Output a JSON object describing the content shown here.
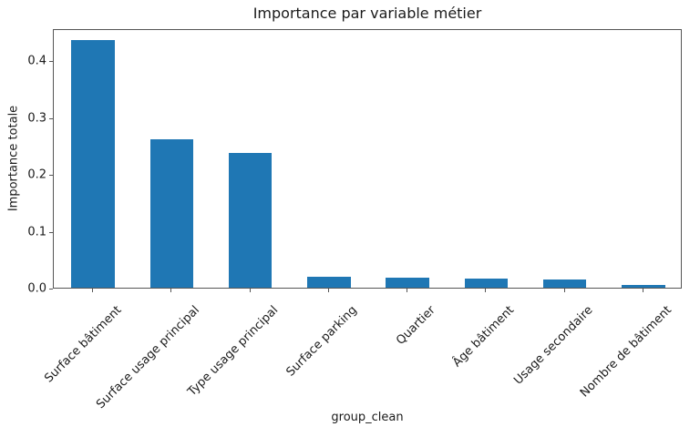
{
  "chart_data": {
    "type": "bar",
    "title": "Importance par variable métier",
    "xlabel": "group_clean",
    "ylabel": "Importance totale",
    "categories": [
      "Surface bâtiment",
      "Surface usage principal",
      "Type usage principal",
      "Surface parking",
      "Quartier",
      "Âge bâtiment",
      "Usage secondaire",
      "Nombre de bâtiment"
    ],
    "values": [
      0.435,
      0.261,
      0.237,
      0.019,
      0.018,
      0.016,
      0.015,
      0.005
    ],
    "yticks": [
      0.0,
      0.1,
      0.2,
      0.3,
      0.4
    ],
    "ytick_labels": [
      "0.0",
      "0.1",
      "0.2",
      "0.3",
      "0.4"
    ],
    "ylim": [
      0,
      0.456
    ],
    "bar_color": "#1f77b4",
    "x_tick_rotation_deg": 45,
    "grid": false,
    "legend": null
  }
}
